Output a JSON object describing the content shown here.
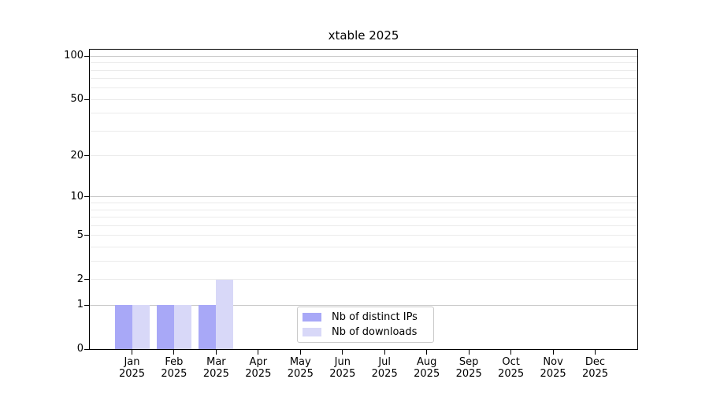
{
  "chart_data": {
    "type": "bar",
    "title": "xtable 2025",
    "categories": [
      "Jan",
      "Feb",
      "Mar",
      "Apr",
      "May",
      "Jun",
      "Jul",
      "Aug",
      "Sep",
      "Oct",
      "Nov",
      "Dec"
    ],
    "x_tick_year": "2025",
    "series": [
      {
        "name": "Nb of distinct IPs",
        "color": "#a8a8f7",
        "values": [
          1,
          1,
          1,
          0,
          0,
          0,
          0,
          0,
          0,
          0,
          0,
          0
        ]
      },
      {
        "name": "Nb of downloads",
        "color": "#d8d8f8",
        "values": [
          1,
          1,
          2,
          0,
          0,
          0,
          0,
          0,
          0,
          0,
          0,
          0
        ]
      }
    ],
    "y_axis": {
      "scale": "log1p",
      "lim": [
        0,
        111
      ],
      "tick_values": [
        0,
        1,
        2,
        5,
        10,
        20,
        50,
        100
      ],
      "tick_labels": [
        "0",
        "1",
        "2",
        "5",
        "10",
        "20",
        "50",
        "100"
      ],
      "major_gridlines": [
        1,
        10,
        100
      ],
      "minor_gridlines": [
        2,
        3,
        4,
        5,
        6,
        7,
        8,
        9,
        20,
        30,
        40,
        50,
        60,
        70,
        80,
        90
      ]
    },
    "xlabel": "",
    "ylabel": "",
    "grid": true,
    "legend": {
      "position": "lower center",
      "entries": [
        "Nb of distinct IPs",
        "Nb of downloads"
      ]
    },
    "colors": {
      "major_grid": "#c8c8c8",
      "minor_grid": "#ebebeb",
      "axis": "#000000",
      "background": "#ffffff"
    }
  }
}
